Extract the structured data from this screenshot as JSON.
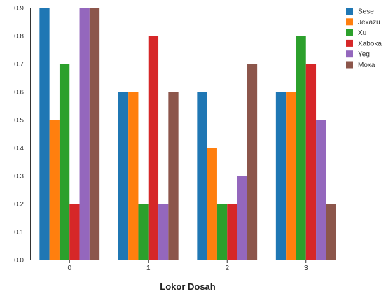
{
  "chart_data": {
    "type": "bar",
    "title": "",
    "xlabel": "Lokor Dosah",
    "ylabel": "",
    "categories": [
      "0",
      "1",
      "2",
      "3"
    ],
    "ylim": [
      0,
      0.9
    ],
    "yticks": [
      "0.0",
      "0.1",
      "0.2",
      "0.3",
      "0.4",
      "0.5",
      "0.6",
      "0.7",
      "0.8",
      "0.9"
    ],
    "grid": true,
    "legend_position": "top-right",
    "series": [
      {
        "name": "Sese",
        "color": "#1f77b4",
        "values": [
          0.9,
          0.6,
          0.6,
          0.6
        ]
      },
      {
        "name": "Jexazu",
        "color": "#ff7f0e",
        "values": [
          0.5,
          0.6,
          0.4,
          0.6
        ]
      },
      {
        "name": "Xu",
        "color": "#2ca02c",
        "values": [
          0.7,
          0.2,
          0.2,
          0.8
        ]
      },
      {
        "name": "Xaboka",
        "color": "#d62728",
        "values": [
          0.2,
          0.8,
          0.2,
          0.7
        ]
      },
      {
        "name": "Yeg",
        "color": "#9467bd",
        "values": [
          0.9,
          0.2,
          0.3,
          0.5
        ]
      },
      {
        "name": "Moxa",
        "color": "#8c564b",
        "values": [
          0.9,
          0.6,
          0.7,
          0.2
        ]
      }
    ]
  }
}
